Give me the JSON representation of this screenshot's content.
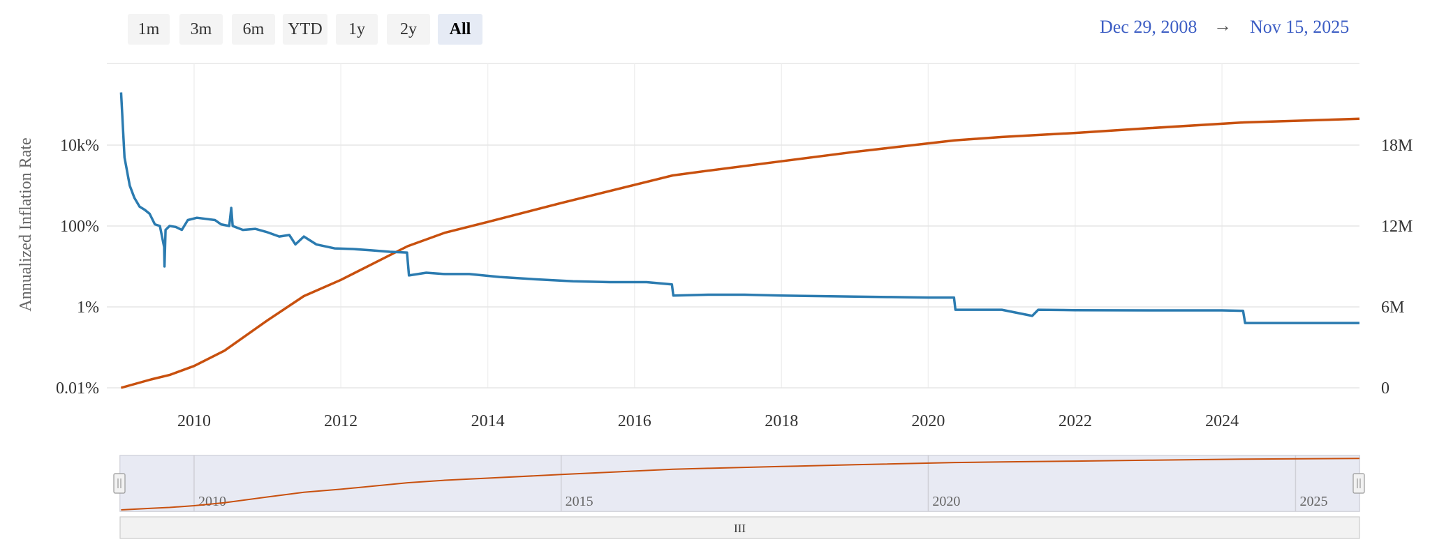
{
  "range_selector": {
    "buttons": [
      {
        "label": "1m",
        "selected": false
      },
      {
        "label": "3m",
        "selected": false
      },
      {
        "label": "6m",
        "selected": false
      },
      {
        "label": "YTD",
        "selected": false
      },
      {
        "label": "1y",
        "selected": false
      },
      {
        "label": "2y",
        "selected": false
      },
      {
        "label": "All",
        "selected": true
      }
    ],
    "from_date": "Dec 29, 2008",
    "arrow": "→",
    "to_date": "Nov 15, 2025"
  },
  "navigator": {
    "tick_labels": [
      "2010",
      "2015",
      "2020",
      "2025"
    ],
    "scrollbar_grip": "III"
  },
  "colors": {
    "inflation": "#2b7bb0",
    "supply": "#c8500e",
    "date_text": "#3d5ec4",
    "navigator_fill": "#e6e6ee"
  },
  "chart_data": {
    "type": "line",
    "x_range": [
      "2008-12-29",
      "2025-11-15"
    ],
    "x_ticks": [
      "2010",
      "2012",
      "2014",
      "2016",
      "2018",
      "2020",
      "2022",
      "2024"
    ],
    "y_left": {
      "label": "Annualized Inflation Rate",
      "scale": "log",
      "range_percent": [
        0.01,
        1000000
      ],
      "ticks": [
        {
          "value": 0.01,
          "label": "0.01%"
        },
        {
          "value": 1,
          "label": "1%"
        },
        {
          "value": 100,
          "label": "100%"
        },
        {
          "value": 10000,
          "label": "10k%"
        }
      ]
    },
    "y_right": {
      "scale": "linear",
      "range": [
        0,
        24000000
      ],
      "ticks": [
        {
          "value": 0,
          "label": "0"
        },
        {
          "value": 6000000,
          "label": "6M"
        },
        {
          "value": 12000000,
          "label": "12M"
        },
        {
          "value": 18000000,
          "label": "18M"
        }
      ]
    },
    "series": [
      {
        "key": "inflation",
        "axis": "left",
        "points": [
          [
            "2009-01-03",
            200000
          ],
          [
            "2009-01-20",
            5000
          ],
          [
            "2009-02-15",
            1000
          ],
          [
            "2009-03-10",
            500
          ],
          [
            "2009-04-05",
            300
          ],
          [
            "2009-05-01",
            250
          ],
          [
            "2009-05-25",
            200
          ],
          [
            "2009-06-20",
            110
          ],
          [
            "2009-07-15",
            100
          ],
          [
            "2009-08-05",
            30
          ],
          [
            "2009-08-07",
            10
          ],
          [
            "2009-08-12",
            80
          ],
          [
            "2009-09-01",
            100
          ],
          [
            "2009-10-01",
            95
          ],
          [
            "2009-11-01",
            80
          ],
          [
            "2009-12-01",
            140
          ],
          [
            "2010-01-15",
            160
          ],
          [
            "2010-03-01",
            150
          ],
          [
            "2010-04-15",
            140
          ],
          [
            "2010-05-15",
            110
          ],
          [
            "2010-06-25",
            100
          ],
          [
            "2010-07-05",
            280
          ],
          [
            "2010-07-12",
            100
          ],
          [
            "2010-09-01",
            80
          ],
          [
            "2010-11-01",
            85
          ],
          [
            "2011-01-01",
            70
          ],
          [
            "2011-03-01",
            55
          ],
          [
            "2011-04-20",
            60
          ],
          [
            "2011-05-20",
            35
          ],
          [
            "2011-07-01",
            55
          ],
          [
            "2011-09-01",
            35
          ],
          [
            "2011-12-01",
            28
          ],
          [
            "2012-03-01",
            27
          ],
          [
            "2012-06-01",
            25
          ],
          [
            "2012-09-01",
            23
          ],
          [
            "2012-11-25",
            22
          ],
          [
            "2012-12-05",
            6
          ],
          [
            "2013-03-01",
            7
          ],
          [
            "2013-06-01",
            6.5
          ],
          [
            "2013-10-01",
            6.5
          ],
          [
            "2014-03-01",
            5.5
          ],
          [
            "2014-09-01",
            4.8
          ],
          [
            "2015-03-01",
            4.3
          ],
          [
            "2015-09-01",
            4.1
          ],
          [
            "2016-03-01",
            4.1
          ],
          [
            "2016-07-05",
            3.6
          ],
          [
            "2016-07-12",
            1.9
          ],
          [
            "2017-01-01",
            2.0
          ],
          [
            "2017-07-01",
            2.0
          ],
          [
            "2018-01-01",
            1.9
          ],
          [
            "2018-07-01",
            1.85
          ],
          [
            "2019-01-01",
            1.8
          ],
          [
            "2019-07-01",
            1.75
          ],
          [
            "2020-01-01",
            1.7
          ],
          [
            "2020-05-08",
            1.7
          ],
          [
            "2020-05-15",
            0.85
          ],
          [
            "2021-01-01",
            0.85
          ],
          [
            "2021-06-01",
            0.6
          ],
          [
            "2021-07-01",
            0.85
          ],
          [
            "2022-01-01",
            0.83
          ],
          [
            "2023-01-01",
            0.82
          ],
          [
            "2024-01-01",
            0.82
          ],
          [
            "2024-04-15",
            0.8
          ],
          [
            "2024-04-25",
            0.4
          ],
          [
            "2025-01-01",
            0.4
          ],
          [
            "2025-11-15",
            0.4
          ]
        ]
      },
      {
        "key": "supply",
        "axis": "right",
        "points": [
          [
            "2009-01-03",
            0
          ],
          [
            "2009-06-01",
            620000
          ],
          [
            "2009-09-01",
            950000
          ],
          [
            "2010-01-01",
            1620000
          ],
          [
            "2010-06-01",
            2750000
          ],
          [
            "2011-01-01",
            5000000
          ],
          [
            "2011-07-01",
            6800000
          ],
          [
            "2012-01-01",
            8000000
          ],
          [
            "2012-11-28",
            10500000
          ],
          [
            "2013-06-01",
            11500000
          ],
          [
            "2014-01-01",
            12300000
          ],
          [
            "2015-01-01",
            13700000
          ],
          [
            "2016-07-09",
            15750000
          ],
          [
            "2017-01-01",
            16100000
          ],
          [
            "2018-01-01",
            16800000
          ],
          [
            "2019-01-01",
            17500000
          ],
          [
            "2020-05-11",
            18350000
          ],
          [
            "2021-01-01",
            18600000
          ],
          [
            "2022-01-01",
            18900000
          ],
          [
            "2023-01-01",
            19250000
          ],
          [
            "2024-04-20",
            19680000
          ],
          [
            "2025-11-15",
            19950000
          ]
        ]
      }
    ]
  }
}
